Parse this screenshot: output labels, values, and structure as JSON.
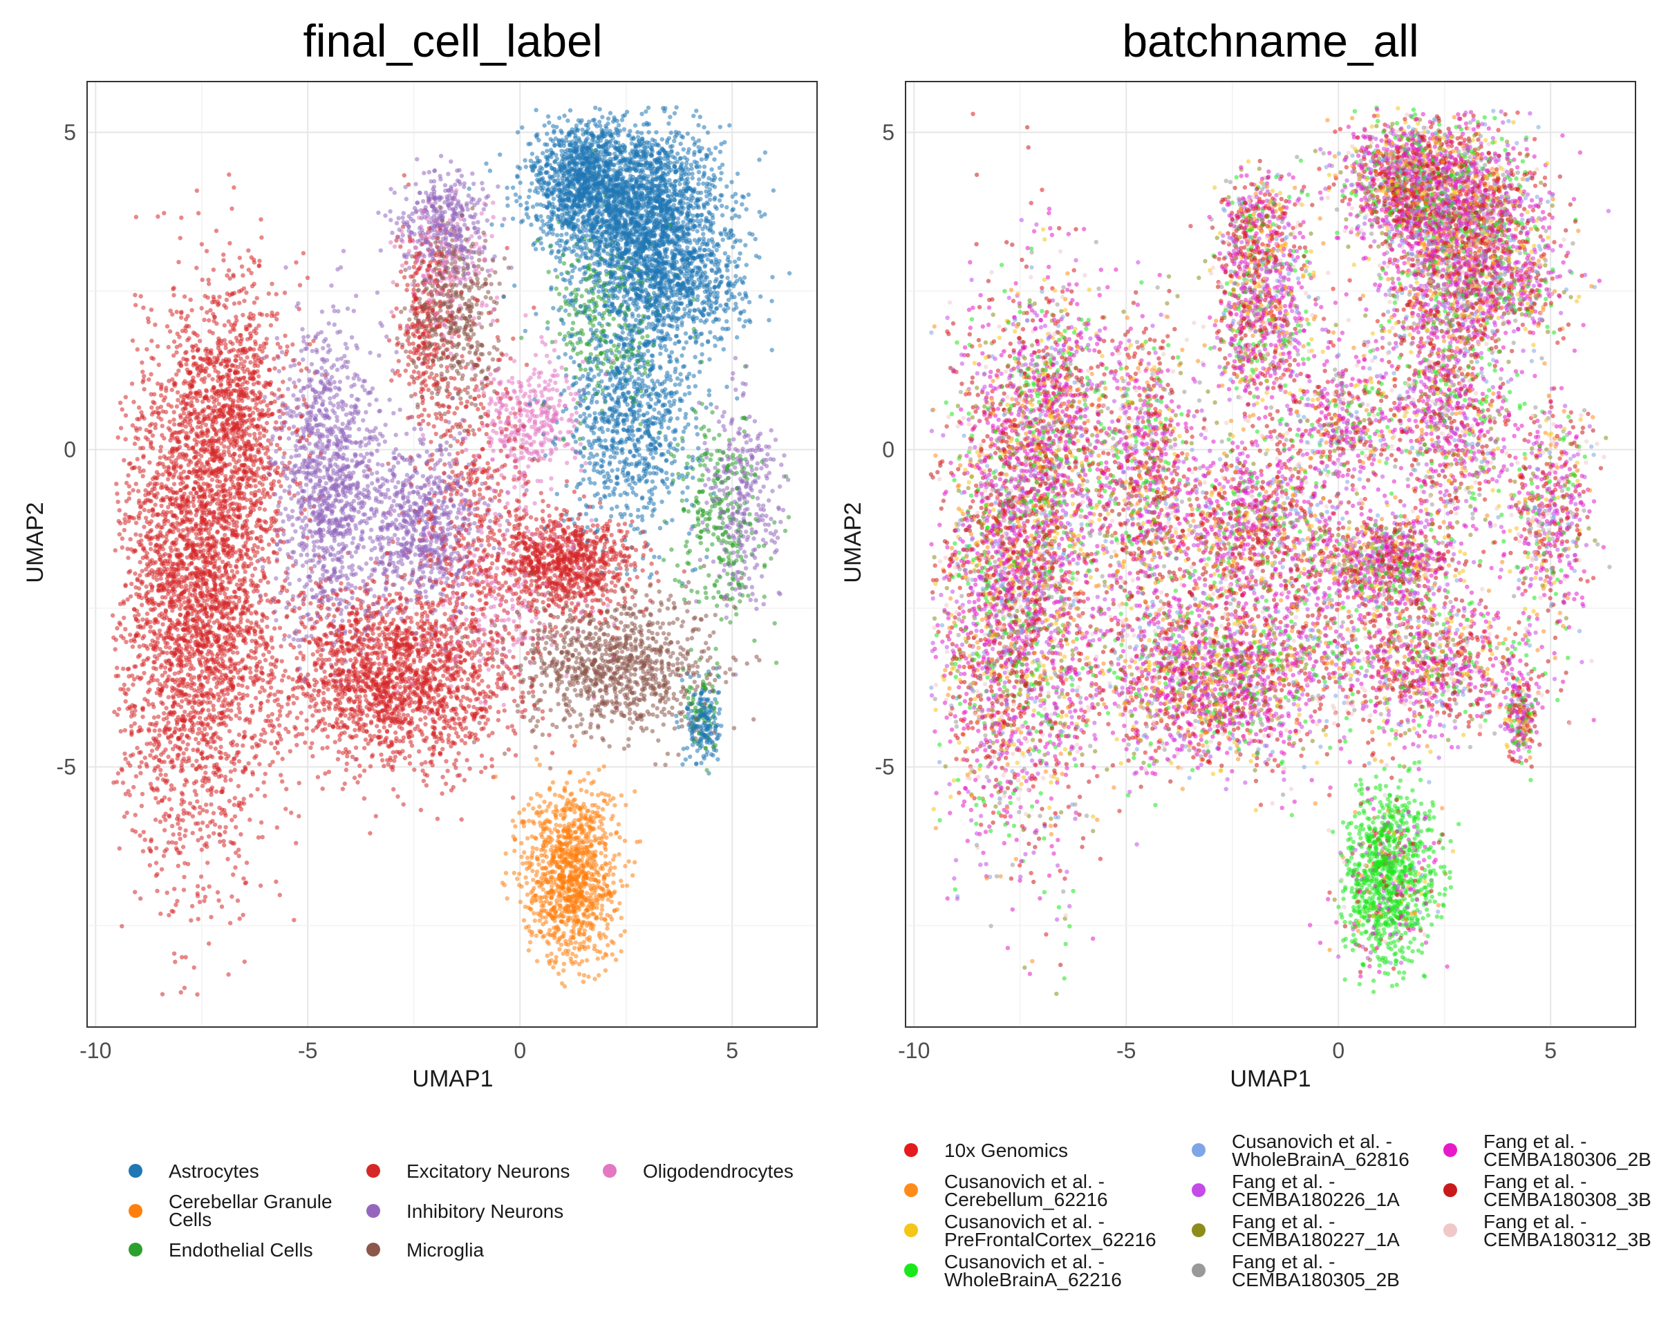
{
  "chart_data": [
    {
      "type": "scatter",
      "title": "final_cell_label",
      "xlabel": "UMAP1",
      "ylabel": "UMAP2",
      "xlim": [
        -10.2,
        7.0
      ],
      "ylim": [
        -9.1,
        5.8
      ],
      "xticks": [
        -10,
        -5,
        0,
        5
      ],
      "yticks": [
        -5,
        0,
        5
      ],
      "grid": true,
      "legend_position": "bottom",
      "series": [
        {
          "name": "Astrocytes",
          "color": "#1F77B4",
          "regions": [
            [
              2.8,
              3.8,
              1.8,
              1.2,
              2000
            ],
            [
              1.5,
              4.3,
              1.3,
              0.8,
              900
            ],
            [
              3.5,
              2.6,
              1.7,
              0.9,
              900
            ],
            [
              2.6,
              0.5,
              1.4,
              1.6,
              900
            ],
            [
              4.3,
              -4.3,
              0.35,
              0.6,
              180
            ]
          ]
        },
        {
          "name": "Cerebellar Granule Cells",
          "color": "#FF7F0E",
          "regions": [
            [
              1.2,
              -6.7,
              1.0,
              1.3,
              1100
            ]
          ]
        },
        {
          "name": "Endothelial Cells",
          "color": "#2CA02C",
          "regions": [
            [
              2.0,
              2.0,
              1.2,
              1.3,
              250
            ],
            [
              4.7,
              -1.0,
              0.9,
              1.5,
              280
            ],
            [
              4.3,
              -4.2,
              0.4,
              0.6,
              60
            ]
          ]
        },
        {
          "name": "Excitatory Neurons",
          "color": "#D62728",
          "regions": [
            [
              -7.6,
              -2.3,
              1.7,
              3.7,
              3200
            ],
            [
              -6.7,
              0.5,
              1.2,
              2.0,
              900
            ],
            [
              -3.0,
              -3.6,
              2.5,
              1.3,
              1900
            ],
            [
              1.1,
              -1.8,
              1.5,
              0.7,
              900
            ],
            [
              -1.0,
              -0.9,
              1.3,
              2.6,
              500
            ],
            [
              -2.3,
              2.0,
              0.6,
              1.3,
              250
            ]
          ]
        },
        {
          "name": "Inhibitory Neurons",
          "color": "#9467BD",
          "regions": [
            [
              -4.5,
              -0.5,
              1.1,
              2.2,
              1100
            ],
            [
              -2.3,
              -1.2,
              1.3,
              1.2,
              700
            ],
            [
              -1.8,
              3.6,
              1.0,
              0.7,
              350
            ],
            [
              5.2,
              -0.8,
              0.8,
              1.6,
              300
            ]
          ]
        },
        {
          "name": "Microglia",
          "color": "#8C564B",
          "regions": [
            [
              2.2,
              -3.4,
              2.2,
              1.0,
              1000
            ],
            [
              -1.6,
              2.0,
              0.9,
              1.3,
              450
            ]
          ]
        },
        {
          "name": "Oligodendrocytes",
          "color": "#E377C2",
          "regions": [
            [
              0.2,
              0.4,
              1.1,
              1.0,
              350
            ],
            [
              -1.8,
              2.8,
              1.0,
              1.0,
              150
            ],
            [
              -0.5,
              -2.5,
              2.0,
              1.5,
              200
            ]
          ]
        }
      ]
    },
    {
      "type": "scatter",
      "title": "batchname_all",
      "xlabel": "UMAP1",
      "ylabel": "UMAP2",
      "xlim": [
        -10.2,
        7.0
      ],
      "ylim": [
        -9.1,
        5.8
      ],
      "xticks": [
        -10,
        -5,
        0,
        5
      ],
      "yticks": [
        -5,
        0,
        5
      ],
      "grid": true,
      "legend_position": "bottom",
      "series": [
        {
          "name": "10x Genomics",
          "color": "#E41A1C",
          "weight": 10
        },
        {
          "name": "Cusanovich et al. -\nCerebellum_62216",
          "color": "#FF8C1A",
          "weight": 6
        },
        {
          "name": "Cusanovich et al. -\nPreFrontalCortex_62216",
          "color": "#F5C518",
          "weight": 6
        },
        {
          "name": "Cusanovich et al. -\nWholeBrainA_62216",
          "color": "#1AE81A",
          "weight": 9
        },
        {
          "name": "Cusanovich et al. -\nWholeBrainA_62816",
          "color": "#7EA6E6",
          "weight": 5
        },
        {
          "name": "Fang et al. -\nCEMBA180226_1A",
          "color": "#C44BE8",
          "weight": 12
        },
        {
          "name": "Fang et al. -\nCEMBA180227_1A",
          "color": "#8C8C1A",
          "weight": 5
        },
        {
          "name": "Fang et al. -\nCEMBA180305_2B",
          "color": "#999999",
          "weight": 5
        },
        {
          "name": "Fang et al. -\nCEMBA180306_2B",
          "color": "#E61AC8",
          "weight": 22
        },
        {
          "name": "Fang et al. -\nCEMBA180308_3B",
          "color": "#C81A1A",
          "weight": 14
        },
        {
          "name": "Fang et al. -\nCEMBA180312_3B",
          "color": "#F0C8C8",
          "weight": 6
        }
      ]
    }
  ]
}
